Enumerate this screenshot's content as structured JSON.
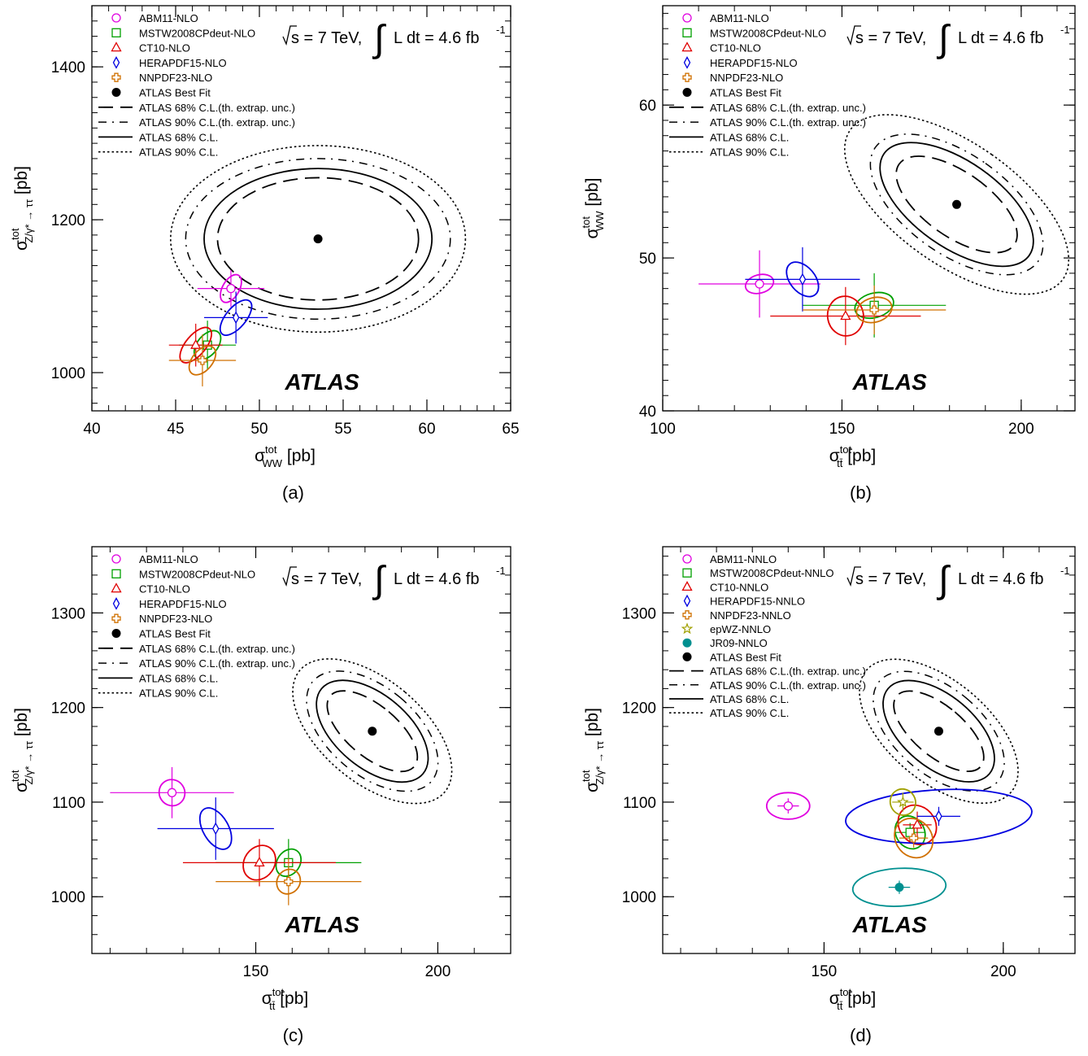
{
  "chart_data": [
    {
      "type": "scatter",
      "panel_label": "(a)",
      "atlas_label": "ATLAS",
      "energy_label": {
        "sqrt_s": "s = 7 TeV,",
        "lumi": "L dt = 4.6 fb",
        "lumi_sup": "-1"
      },
      "xlabel": {
        "base": "σ",
        "sup": "tot",
        "sub": "WW",
        "unit": " [pb]"
      },
      "ylabel": {
        "base": "σ",
        "sup": "tot",
        "sub": "Z/γ* → ττ",
        "unit": " [pb]"
      },
      "xlim": [
        40,
        65
      ],
      "ylim": [
        950,
        1480
      ],
      "xticks": [
        40,
        45,
        50,
        55,
        60,
        65
      ],
      "yticks": [
        1000,
        1200,
        1400
      ],
      "xminor": 1,
      "yminor": 20,
      "legend": [
        {
          "label": "ABM11-NLO",
          "marker": "circle",
          "color": "#e000e0"
        },
        {
          "label": "MSTW2008CPdeut-NLO",
          "marker": "square",
          "color": "#00a000"
        },
        {
          "label": "CT10-NLO",
          "marker": "triangle",
          "color": "#e00000"
        },
        {
          "label": "HERAPDF15-NLO",
          "marker": "diamond",
          "color": "#0000e0"
        },
        {
          "label": "NNPDF23-NLO",
          "marker": "cross",
          "color": "#d07000"
        },
        {
          "label": "ATLAS Best Fit",
          "marker": "dot",
          "color": "#000000"
        },
        {
          "label": "ATLAS 68% C.L.(th. extrap. unc.)",
          "line": "dashed"
        },
        {
          "label": "ATLAS 90% C.L.(th. extrap. unc.)",
          "line": "dashdot"
        },
        {
          "label": "ATLAS 68% C.L.",
          "line": "solid"
        },
        {
          "label": "ATLAS 90% C.L.",
          "line": "dotted"
        }
      ],
      "best_fit": {
        "x": 53.5,
        "y": 1175
      },
      "contours": [
        {
          "style": "dashed",
          "cx": 53.5,
          "cy": 1175,
          "rx": 6.0,
          "ry": 80,
          "angle": 0
        },
        {
          "style": "dashdot",
          "cx": 53.5,
          "cy": 1175,
          "rx": 7.9,
          "ry": 105,
          "angle": 0
        },
        {
          "style": "solid",
          "cx": 53.5,
          "cy": 1175,
          "rx": 6.8,
          "ry": 92,
          "angle": 0
        },
        {
          "style": "dotted",
          "cx": 53.5,
          "cy": 1175,
          "rx": 8.8,
          "ry": 122,
          "angle": 0
        }
      ],
      "predictions": [
        {
          "name": "ABM11-NLO",
          "color": "#e000e0",
          "marker": "circle",
          "x": 48.3,
          "y": 1110,
          "xerr": [
            2.0,
            2.0
          ],
          "yerr": [
            24,
            24
          ],
          "ell_rx": 0.5,
          "ell_ry": 20,
          "ell_angle": 30
        },
        {
          "name": "MSTW2008CPdeut-NLO",
          "color": "#00a000",
          "marker": "square",
          "x": 46.9,
          "y": 1036,
          "xerr": [
            1.7,
            1.7
          ],
          "yerr": [
            32,
            32
          ],
          "ell_rx": 0.6,
          "ell_ry": 22,
          "ell_angle": 40
        },
        {
          "name": "CT10-NLO",
          "color": "#e00000",
          "marker": "triangle",
          "x": 46.2,
          "y": 1036,
          "xerr": [
            1.6,
            1.6
          ],
          "yerr": [
            28,
            28
          ],
          "ell_rx": 0.6,
          "ell_ry": 28,
          "ell_angle": 40
        },
        {
          "name": "HERAPDF15-NLO",
          "color": "#0000e0",
          "marker": "diamond",
          "x": 48.6,
          "y": 1072,
          "xerr": [
            1.9,
            1.9
          ],
          "yerr": [
            34,
            34
          ],
          "ell_rx": 0.6,
          "ell_ry": 28,
          "ell_angle": 40
        },
        {
          "name": "NNPDF23-NLO",
          "color": "#d07000",
          "marker": "cross",
          "x": 46.6,
          "y": 1016,
          "xerr": [
            2.0,
            2.0
          ],
          "yerr": [
            34,
            34
          ],
          "ell_rx": 0.6,
          "ell_ry": 22,
          "ell_angle": 40
        }
      ]
    },
    {
      "type": "scatter",
      "panel_label": "(b)",
      "atlas_label": "ATLAS",
      "energy_label": {
        "sqrt_s": "s = 7 TeV,",
        "lumi": "L dt = 4.6 fb",
        "lumi_sup": "-1"
      },
      "xlabel": {
        "base": "σ",
        "sup": "tot",
        "sub": "tt̄",
        "unit": " [pb]"
      },
      "ylabel": {
        "base": "σ",
        "sup": "tot",
        "sub": "WW",
        "unit": " [pb]"
      },
      "xlim": [
        100,
        215
      ],
      "ylim": [
        40,
        66.5
      ],
      "xticks": [
        100,
        150,
        200
      ],
      "yticks": [
        40,
        50,
        60
      ],
      "xminor": 10,
      "yminor": 1,
      "legend": [
        {
          "label": "ABM11-NLO",
          "marker": "circle",
          "color": "#e000e0"
        },
        {
          "label": "MSTW2008CPdeut-NLO",
          "marker": "square",
          "color": "#00a000"
        },
        {
          "label": "CT10-NLO",
          "marker": "triangle",
          "color": "#e00000"
        },
        {
          "label": "HERAPDF15-NLO",
          "marker": "diamond",
          "color": "#0000e0"
        },
        {
          "label": "NNPDF23-NLO",
          "marker": "cross",
          "color": "#d07000"
        },
        {
          "label": "ATLAS Best Fit",
          "marker": "dot",
          "color": "#000000"
        },
        {
          "label": "ATLAS 68% C.L.(th. extrap. unc.)",
          "line": "dashed"
        },
        {
          "label": "ATLAS 90% C.L.(th. extrap. unc.)",
          "line": "dashdot"
        },
        {
          "label": "ATLAS 68% C.L.",
          "line": "solid"
        },
        {
          "label": "ATLAS 90% C.L.",
          "line": "dotted"
        }
      ],
      "best_fit": {
        "x": 182,
        "y": 53.5
      },
      "contours": [
        {
          "style": "dashed",
          "cx": 182,
          "cy": 53.5,
          "rx": 9,
          "ry": 4.6,
          "angle": -55
        },
        {
          "style": "dashdot",
          "cx": 182,
          "cy": 53.5,
          "rx": 14,
          "ry": 6.5,
          "angle": -55
        },
        {
          "style": "solid",
          "cx": 182,
          "cy": 53.5,
          "rx": 12,
          "ry": 5.8,
          "angle": -55
        },
        {
          "style": "dotted",
          "cx": 182,
          "cy": 53.5,
          "rx": 17,
          "ry": 8.5,
          "angle": -55
        }
      ],
      "predictions": [
        {
          "name": "ABM11-NLO",
          "color": "#e000e0",
          "marker": "circle",
          "x": 127,
          "y": 48.3,
          "xerr": [
            17,
            17
          ],
          "yerr": [
            2.2,
            2.2
          ],
          "ell_rx": 4,
          "ell_ry": 0.6,
          "ell_angle": -15
        },
        {
          "name": "MSTW2008CPdeut-NLO",
          "color": "#00a000",
          "marker": "square",
          "x": 159,
          "y": 46.9,
          "xerr": [
            20,
            20
          ],
          "yerr": [
            2.1,
            2.1
          ],
          "ell_rx": 5.5,
          "ell_ry": 0.8,
          "ell_angle": -15
        },
        {
          "name": "CT10-NLO",
          "color": "#e00000",
          "marker": "triangle",
          "x": 151,
          "y": 46.2,
          "xerr": [
            21,
            21
          ],
          "yerr": [
            1.9,
            1.9
          ],
          "ell_rx": 5.0,
          "ell_ry": 1.3,
          "ell_angle": -10
        },
        {
          "name": "HERAPDF15-NLO",
          "color": "#0000e0",
          "marker": "diamond",
          "x": 139,
          "y": 48.6,
          "xerr": [
            16,
            16
          ],
          "yerr": [
            2.1,
            2.1
          ],
          "ell_rx": 3.5,
          "ell_ry": 1.3,
          "ell_angle": -40
        },
        {
          "name": "NNPDF23-NLO",
          "color": "#d07000",
          "marker": "cross",
          "x": 159,
          "y": 46.6,
          "xerr": [
            20,
            20
          ],
          "yerr": [
            1.6,
            1.6
          ],
          "ell_rx": 5.0,
          "ell_ry": 0.8,
          "ell_angle": -15
        }
      ]
    },
    {
      "type": "scatter",
      "panel_label": "(c)",
      "atlas_label": "ATLAS",
      "energy_label": {
        "sqrt_s": "s = 7 TeV,",
        "lumi": "L dt = 4.6 fb",
        "lumi_sup": "-1"
      },
      "xlabel": {
        "base": "σ",
        "sup": "tot",
        "sub": "tt̄",
        "unit": " [pb]"
      },
      "ylabel": {
        "base": "σ",
        "sup": "tot",
        "sub": "Z/γ* → ττ",
        "unit": " [pb]"
      },
      "xlim": [
        105,
        220
      ],
      "ylim": [
        940,
        1370
      ],
      "xticks": [
        150,
        200
      ],
      "yticks": [
        1000,
        1100,
        1200,
        1300
      ],
      "xminor": 10,
      "yminor": 20,
      "legend": [
        {
          "label": "ABM11-NLO",
          "marker": "circle",
          "color": "#e000e0"
        },
        {
          "label": "MSTW2008CPdeut-NLO",
          "marker": "square",
          "color": "#00a000"
        },
        {
          "label": "CT10-NLO",
          "marker": "triangle",
          "color": "#e00000"
        },
        {
          "label": "HERAPDF15-NLO",
          "marker": "diamond",
          "color": "#0000e0"
        },
        {
          "label": "NNPDF23-NLO",
          "marker": "cross",
          "color": "#d07000"
        },
        {
          "label": "ATLAS Best Fit",
          "marker": "dot",
          "color": "#000000"
        },
        {
          "label": "ATLAS 68% C.L.(th. extrap. unc.)",
          "line": "dashed"
        },
        {
          "label": "ATLAS 90% C.L.(th. extrap. unc.)",
          "line": "dashdot"
        },
        {
          "label": "ATLAS 68% C.L.",
          "line": "solid"
        },
        {
          "label": "ATLAS 90% C.L.",
          "line": "dotted"
        }
      ],
      "best_fit": {
        "x": 182,
        "y": 1175
      },
      "contours": [
        {
          "style": "dashed",
          "cx": 182,
          "cy": 1175,
          "rx": 7,
          "ry": 58,
          "angle": -50
        },
        {
          "style": "dashdot",
          "cx": 182,
          "cy": 1175,
          "rx": 12,
          "ry": 82,
          "angle": -50
        },
        {
          "style": "solid",
          "cx": 182,
          "cy": 1175,
          "rx": 10,
          "ry": 70,
          "angle": -50
        },
        {
          "style": "dotted",
          "cx": 182,
          "cy": 1175,
          "rx": 14,
          "ry": 100,
          "angle": -50
        }
      ],
      "predictions": [
        {
          "name": "ABM11-NLO",
          "color": "#e000e0",
          "marker": "circle",
          "x": 127,
          "y": 1110,
          "xerr": [
            17,
            17
          ],
          "yerr": [
            27,
            27
          ],
          "ell_rx": 3.5,
          "ell_ry": 14,
          "ell_angle": -35
        },
        {
          "name": "MSTW2008CPdeut-NLO",
          "color": "#00a000",
          "marker": "square",
          "x": 159,
          "y": 1036,
          "xerr": [
            20,
            20
          ],
          "yerr": [
            25,
            25
          ],
          "ell_rx": 4,
          "ell_ry": 12,
          "ell_angle": -55
        },
        {
          "name": "CT10-NLO",
          "color": "#e00000",
          "marker": "triangle",
          "x": 151,
          "y": 1036,
          "xerr": [
            21,
            21
          ],
          "yerr": [
            25,
            25
          ],
          "ell_rx": 5,
          "ell_ry": 16,
          "ell_angle": -55
        },
        {
          "name": "HERAPDF15-NLO",
          "color": "#0000e0",
          "marker": "diamond",
          "x": 139,
          "y": 1072,
          "xerr": [
            16,
            16
          ],
          "yerr": [
            33,
            33
          ],
          "ell_rx": 3.5,
          "ell_ry": 24,
          "ell_angle": -30
        },
        {
          "name": "NNPDF23-NLO",
          "color": "#d07000",
          "marker": "cross",
          "x": 159,
          "y": 1016,
          "xerr": [
            20,
            20
          ],
          "yerr": [
            25,
            25
          ],
          "ell_rx": 3.5,
          "ell_ry": 12,
          "ell_angle": -55
        }
      ]
    },
    {
      "type": "scatter",
      "panel_label": "(d)",
      "atlas_label": "ATLAS",
      "energy_label": {
        "sqrt_s": "s = 7 TeV,",
        "lumi": "L dt = 4.6 fb",
        "lumi_sup": "-1"
      },
      "xlabel": {
        "base": "σ",
        "sup": "tot",
        "sub": "tt̄",
        "unit": " [pb]"
      },
      "ylabel": {
        "base": "σ",
        "sup": "tot",
        "sub": "Z/γ* → ττ",
        "unit": " [pb]"
      },
      "xlim": [
        105,
        220
      ],
      "ylim": [
        940,
        1370
      ],
      "xticks": [
        150,
        200
      ],
      "yticks": [
        1000,
        1100,
        1200,
        1300
      ],
      "xminor": 10,
      "yminor": 20,
      "legend": [
        {
          "label": "ABM11-NNLO",
          "marker": "circle",
          "color": "#e000e0"
        },
        {
          "label": "MSTW2008CPdeut-NNLO",
          "marker": "square",
          "color": "#00a000"
        },
        {
          "label": "CT10-NNLO",
          "marker": "triangle",
          "color": "#e00000"
        },
        {
          "label": "HERAPDF15-NNLO",
          "marker": "diamond",
          "color": "#0000e0"
        },
        {
          "label": "NNPDF23-NNLO",
          "marker": "cross",
          "color": "#d07000"
        },
        {
          "label": "epWZ-NNLO",
          "marker": "star",
          "color": "#a0a000"
        },
        {
          "label": "JR09-NNLO",
          "marker": "dot",
          "color": "#009090"
        },
        {
          "label": "ATLAS Best Fit",
          "marker": "dot",
          "color": "#000000"
        },
        {
          "label": "ATLAS 68% C.L.(th. extrap. unc.)",
          "line": "dashed"
        },
        {
          "label": "ATLAS 90% C.L.(th. extrap. unc.)",
          "line": "dashdot"
        },
        {
          "label": "ATLAS 68% C.L.",
          "line": "solid"
        },
        {
          "label": "ATLAS 90% C.L.",
          "line": "dotted"
        }
      ],
      "best_fit": {
        "x": 182,
        "y": 1175
      },
      "contours": [
        {
          "style": "dashed",
          "cx": 182,
          "cy": 1175,
          "rx": 7,
          "ry": 58,
          "angle": -50
        },
        {
          "style": "dashdot",
          "cx": 182,
          "cy": 1175,
          "rx": 12,
          "ry": 82,
          "angle": -50
        },
        {
          "style": "solid",
          "cx": 182,
          "cy": 1175,
          "rx": 10,
          "ry": 70,
          "angle": -50
        },
        {
          "style": "dotted",
          "cx": 182,
          "cy": 1175,
          "rx": 14,
          "ry": 100,
          "angle": -50
        }
      ],
      "predictions": [
        {
          "name": "ABM11-NNLO",
          "color": "#e000e0",
          "marker": "circle",
          "x": 140,
          "y": 1096,
          "xerr": [
            3,
            3
          ],
          "yerr": [
            8,
            8
          ],
          "ell_rx": 6,
          "ell_ry": 14,
          "ell_angle": 0
        },
        {
          "name": "MSTW2008CPdeut-NNLO",
          "color": "#00a000",
          "marker": "square",
          "x": 174,
          "y": 1068,
          "xerr": [
            4,
            4
          ],
          "yerr": [
            10,
            10
          ],
          "ell_rx": 4,
          "ell_ry": 18,
          "ell_angle": -30
        },
        {
          "name": "CT10-NNLO",
          "color": "#e00000",
          "marker": "triangle",
          "x": 176,
          "y": 1076,
          "xerr": [
            4,
            4
          ],
          "yerr": [
            14,
            14
          ],
          "ell_rx": 5,
          "ell_ry": 22,
          "ell_angle": -40
        },
        {
          "name": "HERAPDF15-NNLO",
          "color": "#0000e0",
          "marker": "diamond",
          "x": 182,
          "y": 1085,
          "xerr": [
            6,
            6
          ],
          "yerr": [
            10,
            10
          ],
          "ell_rx": 26,
          "ell_ry": 28,
          "ell_angle": -3
        },
        {
          "name": "NNPDF23-NNLO",
          "color": "#d07000",
          "marker": "cross",
          "x": 175,
          "y": 1062,
          "xerr": [
            4,
            4
          ],
          "yerr": [
            10,
            10
          ],
          "ell_rx": 5,
          "ell_ry": 22,
          "ell_angle": -40
        },
        {
          "name": "epWZ-NNLO",
          "color": "#a0a000",
          "marker": "star",
          "x": 172,
          "y": 1100,
          "xerr": [
            3,
            3
          ],
          "yerr": [
            10,
            10
          ],
          "ell_rx": 3.5,
          "ell_ry": 14,
          "ell_angle": -30
        },
        {
          "name": "JR09-NNLO",
          "color": "#009090",
          "marker": "dot",
          "x": 171,
          "y": 1010,
          "xerr": [
            3,
            3
          ],
          "yerr": [
            7,
            7
          ],
          "ell_rx": 13,
          "ell_ry": 20,
          "ell_angle": -3
        }
      ]
    }
  ]
}
